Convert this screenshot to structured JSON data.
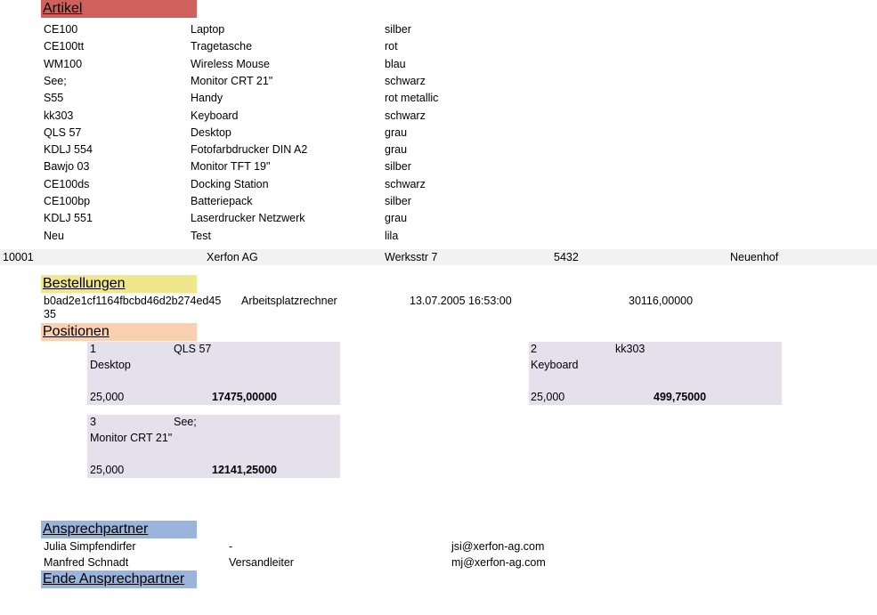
{
  "artikel": {
    "heading": "Artikel",
    "heading_color": "#d0605c",
    "rows": [
      {
        "code": "CE100",
        "name": "Laptop",
        "color": "silber"
      },
      {
        "code": "CE100tt",
        "name": "Tragetasche",
        "color": "rot"
      },
      {
        "code": "WM100",
        "name": "Wireless Mouse",
        "color": "blau"
      },
      {
        "code": "See;",
        "name": "Monitor CRT 21\"",
        "color": "schwarz"
      },
      {
        "code": "S55",
        "name": "Handy",
        "color": "rot metallic"
      },
      {
        "code": "kk303",
        "name": "Keyboard",
        "color": "schwarz"
      },
      {
        "code": "QLS 57",
        "name": "Desktop",
        "color": "grau"
      },
      {
        "code": "KDLJ 554",
        "name": "Fotofarbdrucker DIN A2",
        "color": "grau"
      },
      {
        "code": "Bawjo 03",
        "name": "Monitor TFT 19\"",
        "color": "silber"
      },
      {
        "code": "CE100ds",
        "name": "Docking Station",
        "color": "schwarz"
      },
      {
        "code": "CE100bp",
        "name": "Batteriepack",
        "color": "silber"
      },
      {
        "code": "KDLJ 551",
        "name": "Laserdrucker Netzwerk",
        "color": "grau"
      },
      {
        "code": "Neu",
        "name": "Test",
        "color": "lila"
      }
    ]
  },
  "customer": {
    "id": "10001",
    "company": "Xerfon AG",
    "street": "Werksstr 7",
    "zip": "5432",
    "city": "Neuenhof"
  },
  "bestellungen": {
    "heading": "Bestellungen",
    "heading_color": "#f0e68c",
    "order": {
      "id_line1": "b0ad2e1cf1164fbcbd46d2b274ed45",
      "id_line2": "35",
      "description": "Arbeitsplatzrechner",
      "datetime": "13.07.2005 16:53:00",
      "total": "30116,00000"
    }
  },
  "positionen": {
    "heading": "Positionen",
    "heading_color": "#fbd0b0",
    "card_color": "#e4e0ec",
    "items": [
      {
        "nr": "1",
        "code": "QLS 57",
        "name": "Desktop",
        "qty": "25,000",
        "amount": "17475,00000"
      },
      {
        "nr": "2",
        "code": "kk303",
        "name": "Keyboard",
        "qty": "25,000",
        "amount": "499,75000"
      },
      {
        "nr": "3",
        "code": "See;",
        "name": "Monitor CRT 21\"",
        "qty": "25,000",
        "amount": "12141,25000"
      }
    ]
  },
  "ansprechpartner": {
    "heading": "Ansprechpartner",
    "end_heading": "Ende Ansprechpartner",
    "heading_color": "#9ab4dc",
    "contacts": [
      {
        "name": "Julia Simpfendirfer",
        "role": "-",
        "email": "jsi@xerfon-ag.com"
      },
      {
        "name": "Manfred Schnadt",
        "role": "Versandleiter",
        "email": "mj@xerfon-ag.com"
      }
    ]
  }
}
